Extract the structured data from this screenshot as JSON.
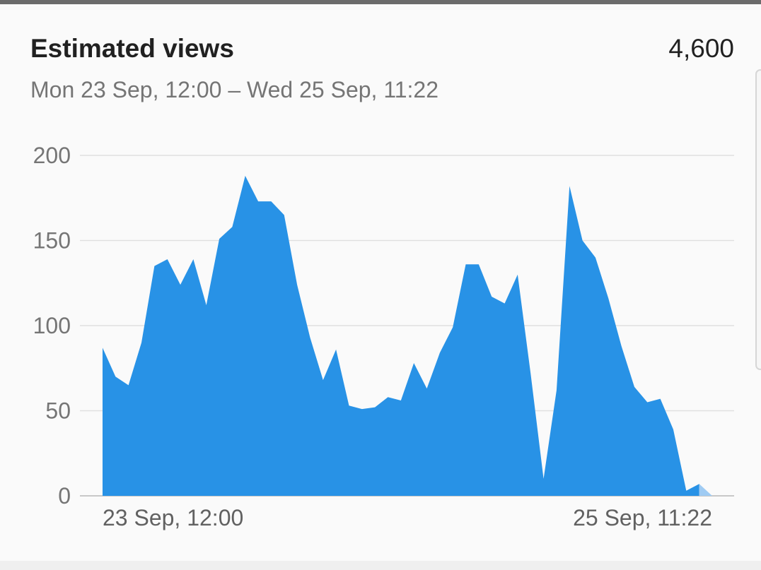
{
  "card": {
    "title": "Estimated views",
    "total": "4,600",
    "date_range": "Mon 23 Sep, 12:00 – Wed 25 Sep, 11:22"
  },
  "colors": {
    "area": "#2892e6",
    "area_partial": "#9fcbf3",
    "grid": "#e0e0e0",
    "baseline": "#c8c8c8"
  },
  "chart_data": {
    "type": "area",
    "title": "Estimated views",
    "xlabel": "",
    "ylabel": "",
    "ylim": [
      0,
      200
    ],
    "yticks": [
      0,
      50,
      100,
      150,
      200
    ],
    "ytick_labels": [
      "0",
      "50",
      "100",
      "150",
      "200"
    ],
    "xtick_labels": [
      "23 Sep, 12:00",
      "25 Sep, 11:22"
    ],
    "grid": true,
    "series": [
      {
        "values": [
          87,
          70,
          65,
          90,
          135,
          139,
          124,
          139,
          112,
          151,
          158,
          188,
          173,
          173,
          165,
          124,
          93,
          68,
          86,
          53,
          51,
          52,
          58,
          56,
          78,
          63,
          84,
          99,
          136,
          136,
          117,
          113,
          130,
          72,
          10,
          62,
          182,
          150,
          140,
          116,
          88,
          64,
          55,
          57,
          39,
          3,
          7,
          0
        ],
        "partial_last_interval": true
      }
    ]
  }
}
